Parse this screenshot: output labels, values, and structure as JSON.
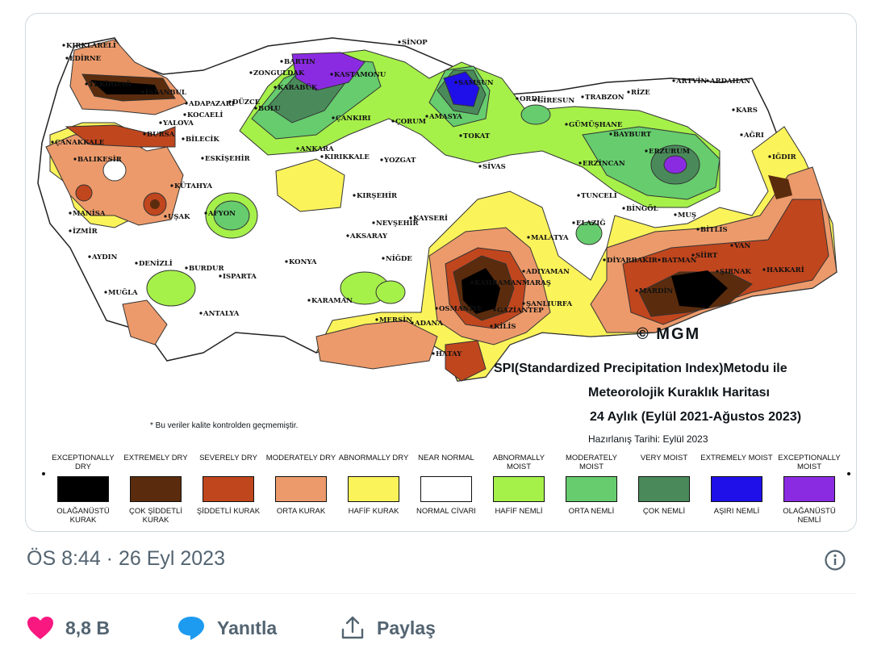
{
  "map": {
    "title_line1": "SPI(Standardized Precipitation Index)Metodu ile",
    "title_line2": "Meteorolojik Kuraklık Haritası",
    "title_line3": "24 Aylık (Eylül 2021-Ağustos 2023)",
    "prepared": "Hazırlanış Tarihi: Eylül 2023",
    "note": "* Bu veriler kalite kontrolden geçmemiştir.",
    "copyright": "© MGM",
    "cities": [
      "KIRKLARELİ",
      "EDİRNE",
      "TEKİRDAĞ",
      "İSTANBUL",
      "ÇANAKKALE",
      "BURSA",
      "YALOVA",
      "KOCAELİ",
      "ADAPAZARI",
      "DÜZCE",
      "BOLU",
      "ZONGULDAK",
      "BARTIN",
      "KARABÜK",
      "KASTAMONU",
      "SİNOP",
      "SAMSUN",
      "AMASYA",
      "TOKAT",
      "ÇORUM",
      "ÇANKIRI",
      "ORDU",
      "GİRESUN",
      "TRABZON",
      "RİZE",
      "ARTVİN",
      "ARDAHAN",
      "KARS",
      "GÜMÜŞHANE",
      "BAYBURT",
      "ERZURUM",
      "ERZİNCAN",
      "AĞRI",
      "IĞDIR",
      "BALIKESİR",
      "BİLECİK",
      "ESKİŞEHİR",
      "KÜTAHYA",
      "MANİSA",
      "İZMİR",
      "UŞAK",
      "AFYON",
      "ANKARA",
      "KIRIKKALE",
      "YOZGAT",
      "SİVAS",
      "KIRŞEHİR",
      "NEVŞEHİR",
      "KAYSERİ",
      "AKSARAY",
      "NİĞDE",
      "KONYA",
      "KARAMAN",
      "AYDIN",
      "DENİZLİ",
      "BURDUR",
      "ISPARTA",
      "MUĞLA",
      "ANTALYA",
      "MERSİN",
      "ADANA",
      "OSMANİYE",
      "KAHRAMANMARAŞ",
      "GAZİANTEP",
      "KİLİS",
      "HATAY",
      "ADIYAMAN",
      "ŞANLIURFA",
      "MALATYA",
      "ELAZIĞ",
      "TUNCELİ",
      "BİNGÖL",
      "MUŞ",
      "BİTLİS",
      "VAN",
      "DİYARBAKIR",
      "BATMAN",
      "SİİRT",
      "ŞIRNAK",
      "HAKKARİ",
      "MARDİN"
    ]
  },
  "legend": [
    {
      "en": "EXCEPTIONALLY DRY",
      "tr": "OLAĞANÜSTÜ KURAK",
      "color": "#000000"
    },
    {
      "en": "EXTREMELY DRY",
      "tr": "ÇOK ŞİDDETLİ KURAK",
      "color": "#5a2c0d"
    },
    {
      "en": "SEVERELY DRY",
      "tr": "ŞİDDETLİ KURAK",
      "color": "#c0461e"
    },
    {
      "en": "MODERATELY DRY",
      "tr": "ORTA KURAK",
      "color": "#ec9a6b"
    },
    {
      "en": "ABNORMALLY DRY",
      "tr": "HAFİF KURAK",
      "color": "#fbf35a"
    },
    {
      "en": "NEAR NORMAL",
      "tr": "NORMAL CİVARI",
      "color": "#ffffff"
    },
    {
      "en": "ABNORMALLY MOIST",
      "tr": "HAFİF NEMLİ",
      "color": "#a6f04a"
    },
    {
      "en": "MODERATELY MOIST",
      "tr": "ORTA NEMLİ",
      "color": "#66cc6e"
    },
    {
      "en": "VERY MOIST",
      "tr": "ÇOK NEMLİ",
      "color": "#4a8a5a"
    },
    {
      "en": "EXTREMELY MOIST",
      "tr": "AŞIRI NEMLİ",
      "color": "#1f0fe8"
    },
    {
      "en": "EXCEPTIONALLY MOIST",
      "tr": "OLAĞANÜSTÜ NEMLİ",
      "color": "#8a2be2"
    }
  ],
  "tweet": {
    "timestamp": "ÖS 8:44 · 26 Eyl 2023",
    "likes": "8,8 B",
    "reply_label": "Yanıtla",
    "share_label": "Paylaş"
  }
}
